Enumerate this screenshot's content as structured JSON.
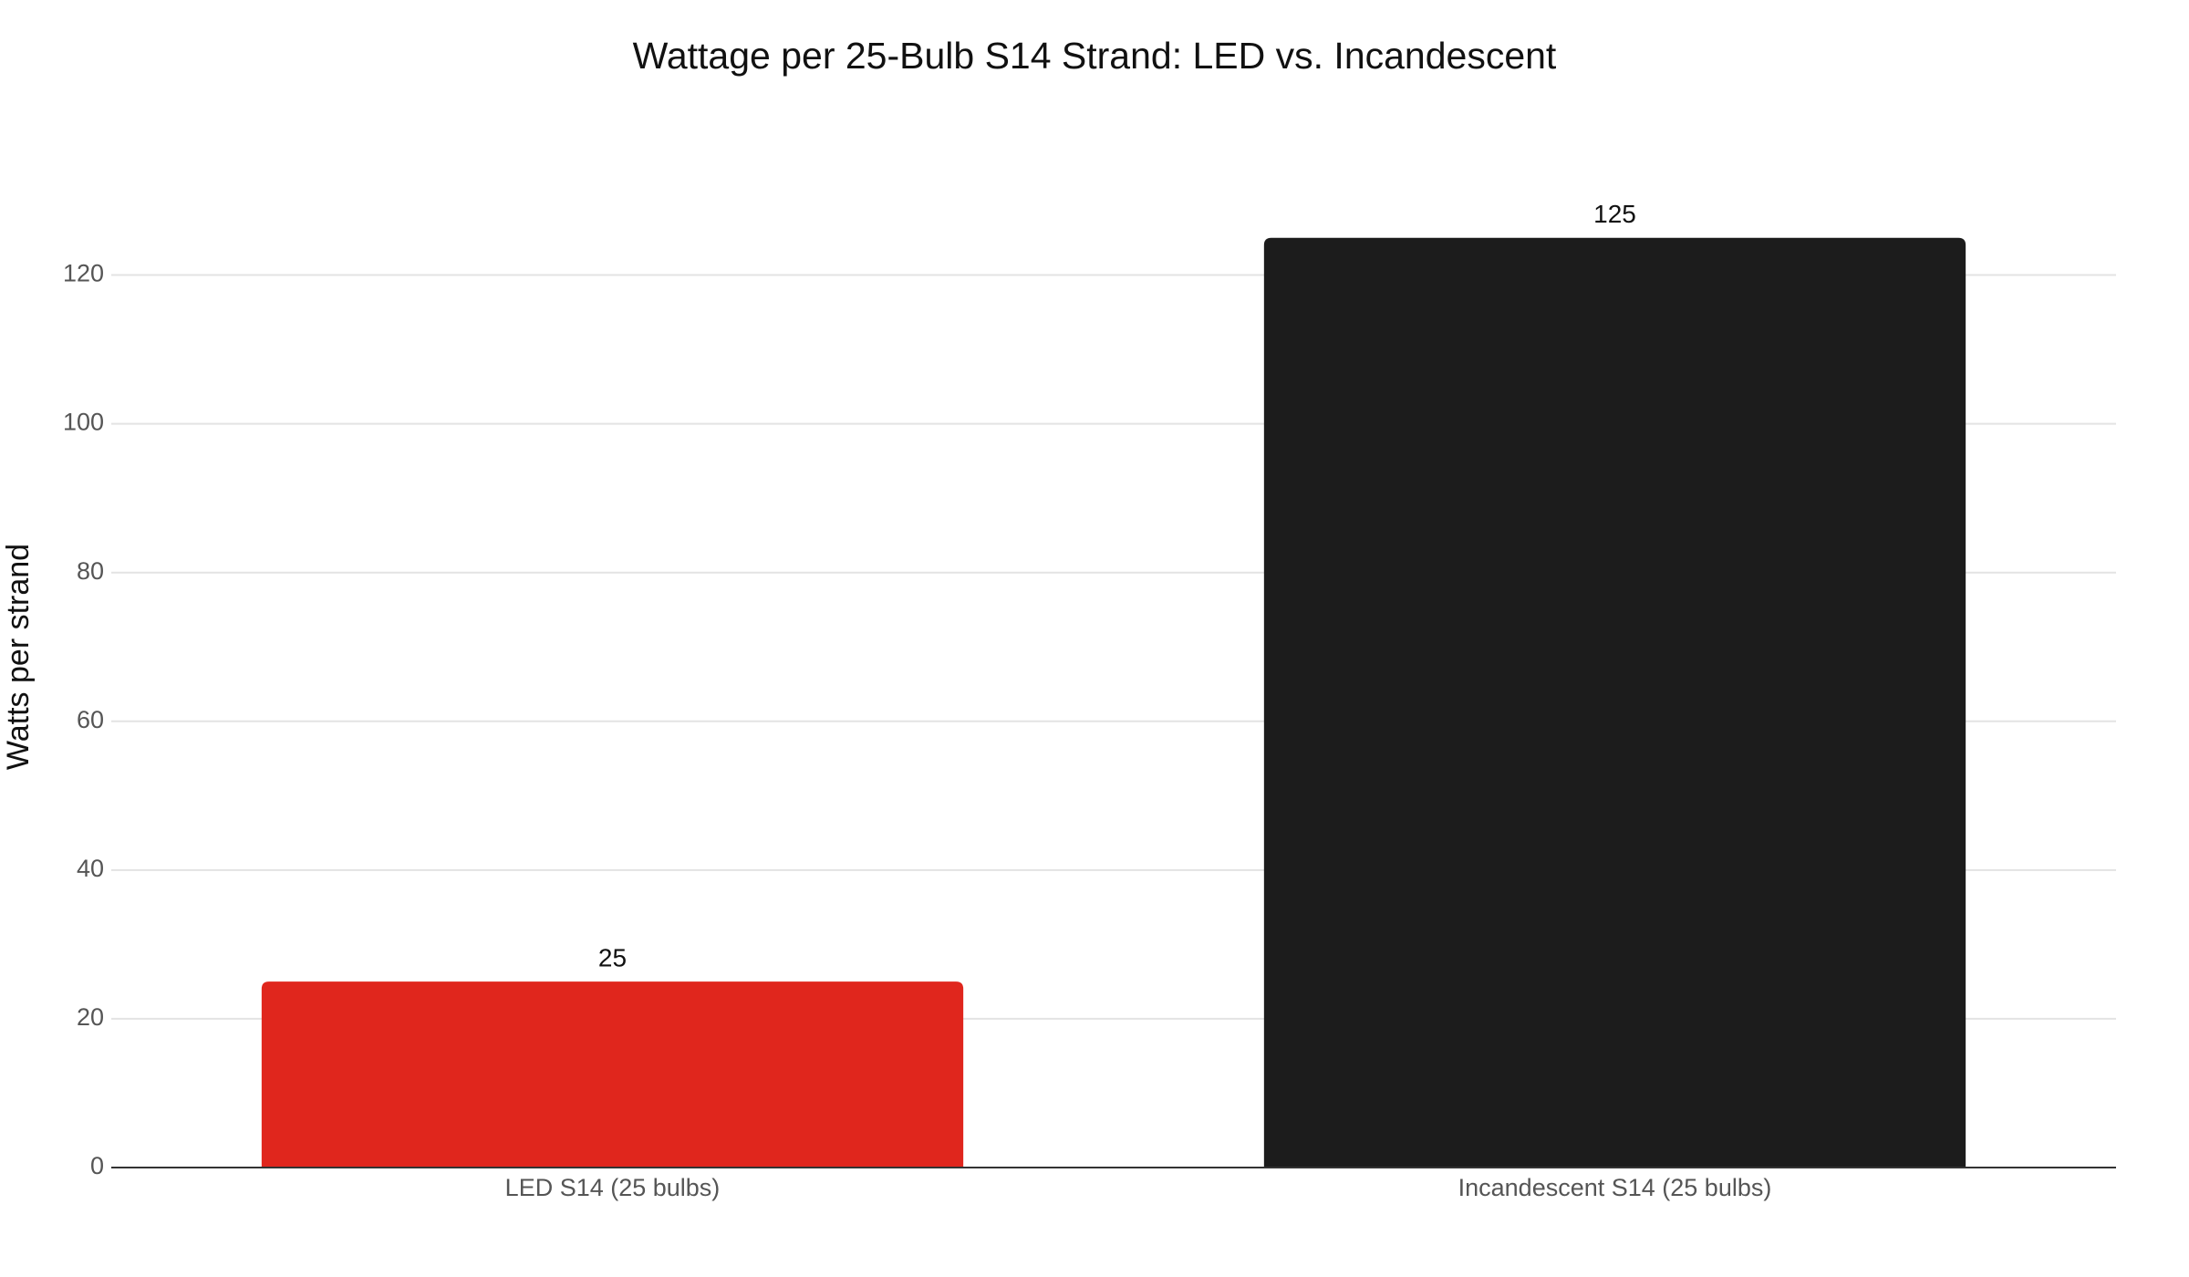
{
  "chart_data": {
    "type": "bar",
    "title": "Wattage per 25-Bulb S14 Strand: LED vs. Incandescent",
    "y_label": "Watts per strand",
    "categories": [
      "LED S14 (25 bulbs)",
      "Incandescent S14 (25 bulbs)"
    ],
    "values": [
      25,
      125
    ],
    "colors": [
      "#e0261d",
      "#1c1c1c"
    ],
    "ylim": [
      0,
      130
    ],
    "yticks": [
      0,
      20,
      40,
      60,
      80,
      100,
      120
    ],
    "grid": true
  }
}
